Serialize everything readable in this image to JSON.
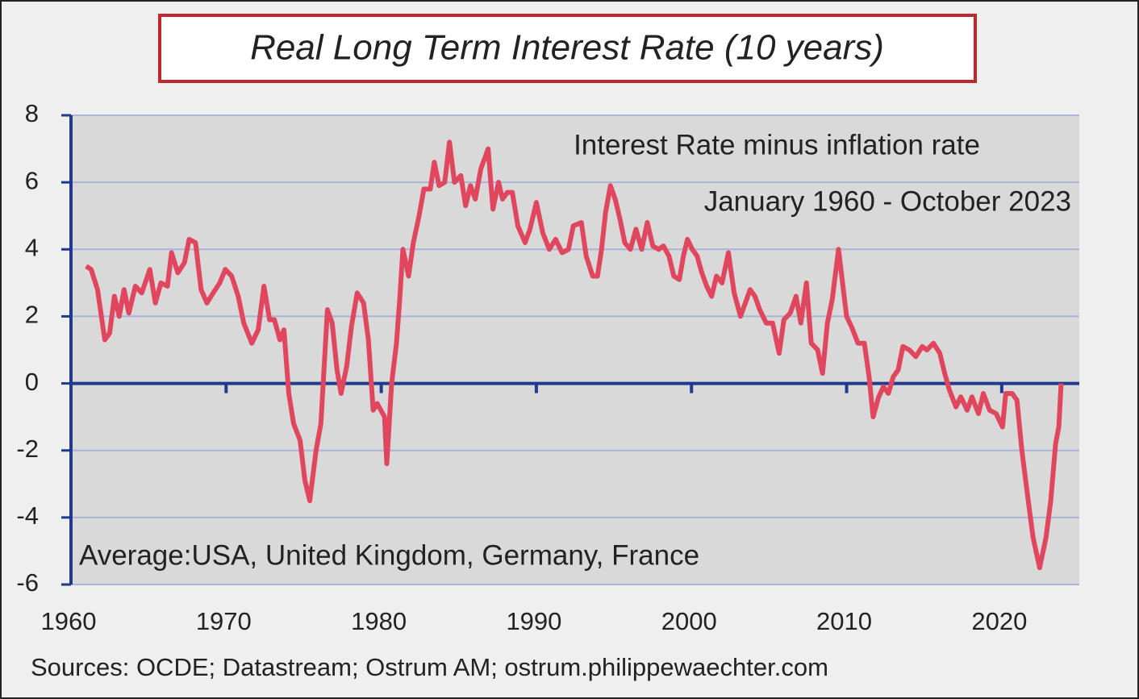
{
  "chart_data": {
    "type": "line",
    "title": "Real Long Term Interest Rate (10 years)",
    "annotations": [
      "Interest Rate minus inflation rate",
      "January 1960 - October 2023",
      "Average:USA, United Kingdom, Germany, France"
    ],
    "source": "Sources: OCDE; Datastream; Ostrum AM; ostrum.philippewaechter.com",
    "xlim": [
      1960,
      2025
    ],
    "xticks": [
      1960,
      1970,
      1980,
      1990,
      2000,
      2010,
      2020
    ],
    "ylim": [
      -6,
      8
    ],
    "yticks": [
      -6,
      -4,
      -2,
      0,
      2,
      4,
      6,
      8
    ],
    "grid": true,
    "x": [
      1960.98,
      1961.3,
      1961.71,
      1962.18,
      1962.49,
      1962.8,
      1963.11,
      1963.42,
      1963.73,
      1964.15,
      1964.56,
      1965.08,
      1965.44,
      1965.8,
      1966.22,
      1966.48,
      1966.89,
      1967.31,
      1967.62,
      1968.03,
      1968.39,
      1968.76,
      1969.17,
      1969.59,
      1969.95,
      1970.36,
      1970.78,
      1971.14,
      1971.66,
      1972.07,
      1972.44,
      1972.8,
      1973.11,
      1973.47,
      1973.73,
      1974.04,
      1974.35,
      1974.77,
      1975.08,
      1975.39,
      1975.8,
      1976.11,
      1976.53,
      1976.84,
      1977.15,
      1977.41,
      1977.77,
      1978.08,
      1978.45,
      1978.86,
      1979.17,
      1979.48,
      1979.74,
      1980.21,
      1980.36,
      1980.67,
      1980.98,
      1981.19,
      1981.4,
      1981.76,
      1982.07,
      1982.44,
      1982.75,
      1983.16,
      1983.42,
      1983.73,
      1984.09,
      1984.4,
      1984.72,
      1985.13,
      1985.44,
      1985.75,
      1986.06,
      1986.42,
      1986.89,
      1987.2,
      1987.56,
      1987.82,
      1988.13,
      1988.45,
      1988.81,
      1989.27,
      1989.59,
      1990.0,
      1990.41,
      1990.83,
      1991.24,
      1991.66,
      1992.07,
      1992.38,
      1992.9,
      1993.21,
      1993.63,
      1993.94,
      1994.2,
      1994.46,
      1994.77,
      1995.08,
      1995.39,
      1995.7,
      1996.06,
      1996.42,
      1996.79,
      1997.15,
      1997.51,
      1997.88,
      1998.19,
      1998.55,
      1998.86,
      1999.22,
      1999.48,
      1999.74,
      2000.05,
      2000.36,
      2000.67,
      2000.98,
      2001.3,
      2001.61,
      2001.97,
      2002.38,
      2002.75,
      2003.16,
      2003.47,
      2003.78,
      2004.09,
      2004.4,
      2004.82,
      2005.23,
      2005.65,
      2005.96,
      2006.37,
      2006.74,
      2007.05,
      2007.41,
      2007.72,
      2008.13,
      2008.45,
      2008.76,
      2009.07,
      2009.48,
      2009.74,
      2010.0,
      2010.31,
      2010.73,
      2011.14,
      2011.45,
      2011.71,
      2012.07,
      2012.38,
      2012.69,
      2013.01,
      2013.32,
      2013.63,
      2014.04,
      2014.46,
      2014.87,
      2015.18,
      2015.6,
      2016.01,
      2016.32,
      2016.63,
      2017.05,
      2017.36,
      2017.77,
      2018.08,
      2018.5,
      2018.81,
      2019.22,
      2019.64,
      2020.05,
      2020.26,
      2020.67,
      2020.98,
      2021.3,
      2021.71,
      2022.02,
      2022.44,
      2022.85,
      2023.16,
      2023.47,
      2023.68,
      2023.83
    ],
    "series": [
      {
        "name": "Real long term interest rate",
        "color": "#e0475f",
        "values": [
          3.5,
          3.4,
          2.8,
          1.3,
          1.5,
          2.6,
          2.0,
          2.8,
          2.1,
          2.9,
          2.7,
          3.4,
          2.4,
          3.0,
          2.9,
          3.9,
          3.3,
          3.6,
          4.3,
          4.2,
          2.8,
          2.4,
          2.7,
          3.0,
          3.4,
          3.2,
          2.6,
          1.8,
          1.2,
          1.6,
          2.9,
          1.9,
          1.9,
          1.3,
          1.6,
          -0.3,
          -1.2,
          -1.7,
          -2.9,
          -3.5,
          -2.0,
          -1.2,
          2.2,
          1.8,
          0.4,
          -0.3,
          0.5,
          1.7,
          2.7,
          2.4,
          1.3,
          -0.8,
          -0.6,
          -1.0,
          -2.4,
          0.0,
          1.2,
          2.5,
          4.0,
          3.2,
          4.2,
          5.0,
          5.8,
          5.8,
          6.6,
          5.9,
          6.0,
          7.2,
          6.0,
          6.2,
          5.3,
          5.9,
          5.5,
          6.4,
          7.0,
          5.2,
          6.0,
          5.5,
          5.7,
          5.7,
          4.7,
          4.2,
          4.6,
          5.4,
          4.5,
          4.0,
          4.3,
          3.9,
          4.0,
          4.7,
          4.8,
          3.8,
          3.2,
          3.2,
          4.0,
          5.1,
          5.9,
          5.5,
          4.9,
          4.2,
          4.0,
          4.6,
          4.0,
          4.8,
          4.1,
          4.0,
          4.1,
          3.8,
          3.2,
          3.1,
          3.8,
          4.3,
          4.0,
          3.8,
          3.3,
          2.9,
          2.6,
          3.2,
          3.0,
          3.9,
          2.7,
          2.0,
          2.4,
          2.8,
          2.6,
          2.2,
          1.8,
          1.8,
          0.9,
          1.9,
          2.1,
          2.6,
          1.8,
          3.0,
          1.2,
          1.0,
          0.3,
          1.8,
          2.5,
          4.0,
          3.0,
          2.0,
          1.7,
          1.2,
          1.2,
          0.2,
          -1.0,
          -0.4,
          -0.1,
          -0.3,
          0.2,
          0.4,
          1.1,
          1.0,
          0.8,
          1.1,
          1.0,
          1.2,
          0.9,
          0.3,
          -0.2,
          -0.7,
          -0.4,
          -0.8,
          -0.4,
          -0.9,
          -0.3,
          -0.8,
          -0.9,
          -1.3,
          -0.3,
          -0.3,
          -0.5,
          -2.0,
          -3.5,
          -4.6,
          -5.5,
          -4.6,
          -3.5,
          -1.8,
          -1.3,
          0.0
        ]
      }
    ]
  }
}
